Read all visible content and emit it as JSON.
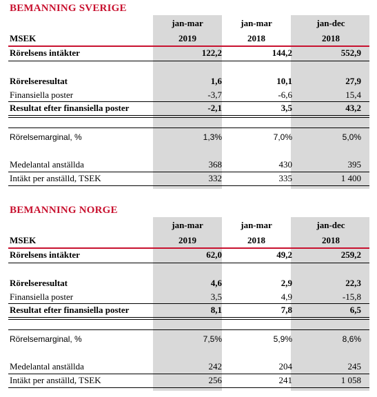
{
  "sections": [
    {
      "title": "BEMANNING SVERIGE",
      "unit": "MSEK",
      "columns": [
        {
          "period": "jan-mar",
          "year": "2019"
        },
        {
          "period": "jan-mar",
          "year": "2018"
        },
        {
          "period": "jan-dec",
          "year": "2018"
        }
      ],
      "rows": {
        "revenue": {
          "label": "Rörelsens intäkter",
          "values": [
            "122,2",
            "144,2",
            "552,9"
          ]
        },
        "operating": {
          "label": "Rörelseresultat",
          "values": [
            "1,6",
            "10,1",
            "27,9"
          ]
        },
        "financial": {
          "label": "Finansiella poster",
          "values": [
            "-3,7",
            "-6,6",
            "15,4"
          ]
        },
        "result": {
          "label": "Resultat efter finansiella poster",
          "values": [
            "-2,1",
            "3,5",
            "43,2"
          ]
        },
        "margin": {
          "label": "Rörelsemarginal, %",
          "values": [
            "1,3%",
            "7,0%",
            "5,0%"
          ]
        },
        "employees": {
          "label": "Medelantal anställda",
          "values": [
            "368",
            "430",
            "395"
          ]
        },
        "per_employee": {
          "label": "Intäkt per anställd, TSEK",
          "values": [
            "332",
            "335",
            "1 400"
          ]
        }
      }
    },
    {
      "title": "BEMANNING NORGE",
      "unit": "MSEK",
      "columns": [
        {
          "period": "jan-mar",
          "year": "2019"
        },
        {
          "period": "jan-mar",
          "year": "2018"
        },
        {
          "period": "jan-dec",
          "year": "2018"
        }
      ],
      "rows": {
        "revenue": {
          "label": "Rörelsens intäkter",
          "values": [
            "62,0",
            "49,2",
            "259,2"
          ]
        },
        "operating": {
          "label": "Rörelseresultat",
          "values": [
            "4,6",
            "2,9",
            "22,3"
          ]
        },
        "financial": {
          "label": "Finansiella poster",
          "values": [
            "3,5",
            "4,9",
            "-15,8"
          ]
        },
        "result": {
          "label": "Resultat efter finansiella poster",
          "values": [
            "8,1",
            "7,8",
            "6,5"
          ]
        },
        "margin": {
          "label": "Rörelsemarginal, %",
          "values": [
            "7,5%",
            "5,9%",
            "8,6%"
          ]
        },
        "employees": {
          "label": "Medelantal anställda",
          "values": [
            "242",
            "204",
            "245"
          ]
        },
        "per_employee": {
          "label": "Intäkt per anställd, TSEK",
          "values": [
            "256",
            "241",
            "1 058"
          ]
        }
      }
    }
  ]
}
